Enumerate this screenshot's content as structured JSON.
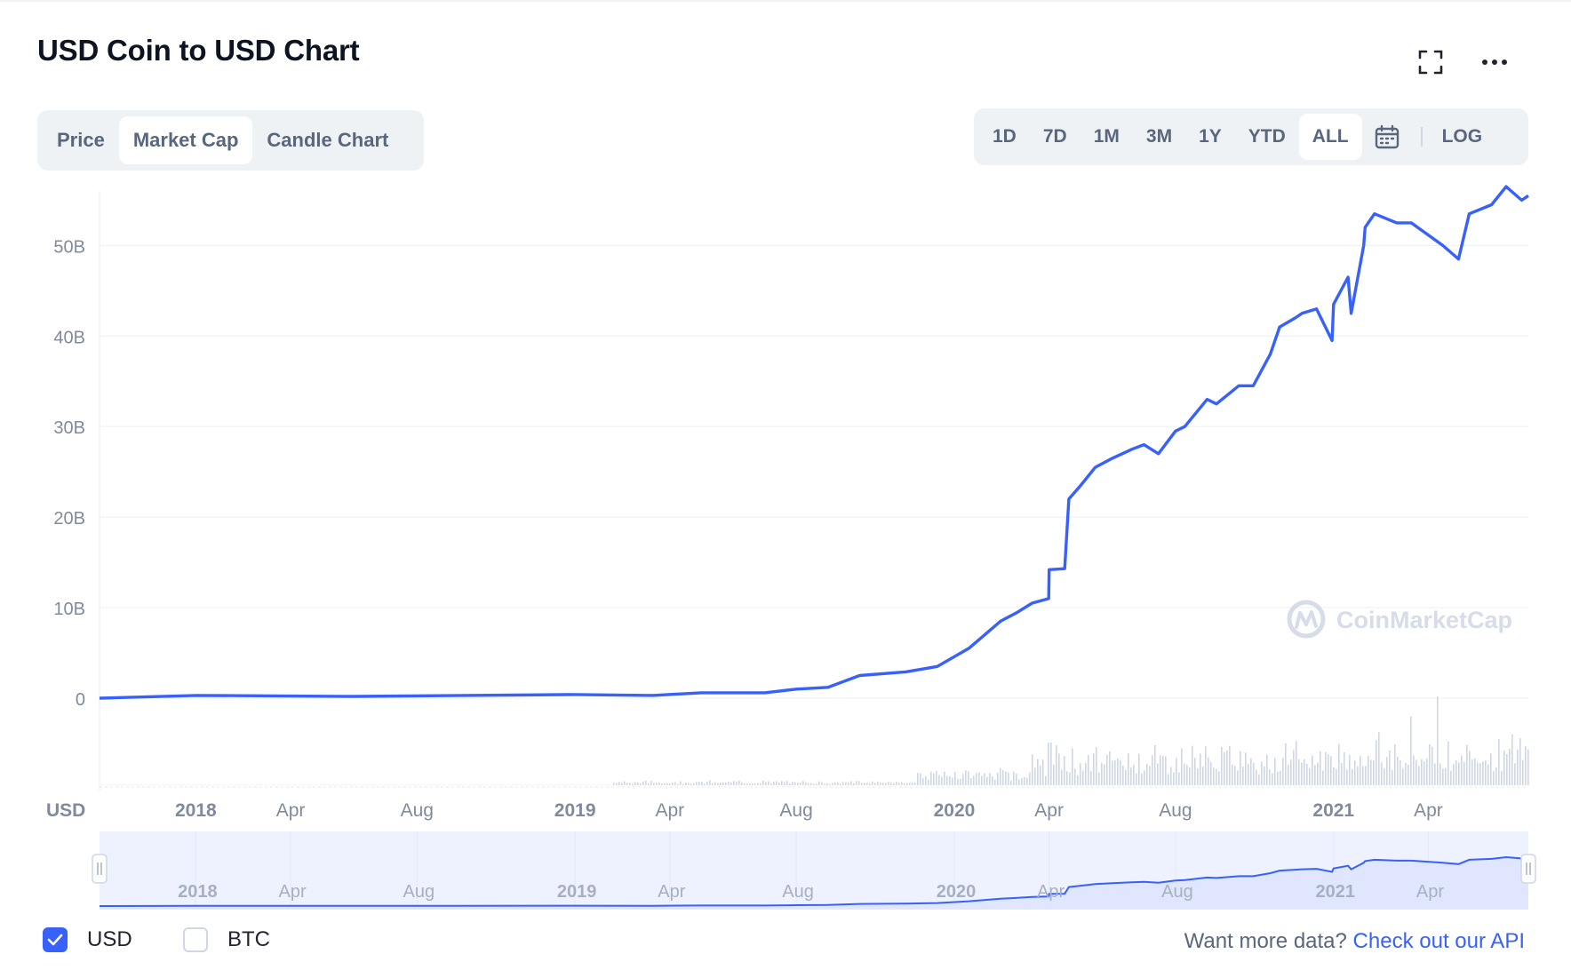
{
  "header": {
    "title": "USD Coin to USD Chart"
  },
  "tabs": [
    {
      "label": "Price",
      "active": false
    },
    {
      "label": "Market Cap",
      "active": true
    },
    {
      "label": "Candle Chart",
      "active": false
    }
  ],
  "ranges": [
    {
      "label": "1D",
      "active": false
    },
    {
      "label": "7D",
      "active": false
    },
    {
      "label": "1M",
      "active": false
    },
    {
      "label": "3M",
      "active": false
    },
    {
      "label": "1Y",
      "active": false
    },
    {
      "label": "YTD",
      "active": false
    },
    {
      "label": "ALL",
      "active": true
    }
  ],
  "log_label": "LOG",
  "icons": {
    "expand": "expand-icon",
    "more": "more-icon",
    "calendar": "calendar-icon"
  },
  "colors": {
    "line": "#3861fb",
    "volume": "#cfd6e4",
    "navigator_fill": "#dfe6fd",
    "navigator_bg": "#eef2fe"
  },
  "watermark": "CoinMarketCap",
  "legend": [
    {
      "label": "USD",
      "checked": true
    },
    {
      "label": "BTC",
      "checked": false
    }
  ],
  "footer": {
    "prompt": "Want more data?",
    "link": "Check out our API"
  },
  "chart_data": {
    "type": "line",
    "title": "USD Coin to USD Chart",
    "ylabel": "USD",
    "y_ticks": [
      "0",
      "10B",
      "20B",
      "30B",
      "40B",
      "50B"
    ],
    "y_tick_values": [
      0,
      10,
      20,
      30,
      40,
      50
    ],
    "y_unit": "billion USD",
    "ylim": [
      0,
      57
    ],
    "x_ticks": [
      {
        "label": "2018",
        "year": true,
        "t": 2018.0
      },
      {
        "label": "Apr",
        "year": false,
        "t": 2018.25
      },
      {
        "label": "Aug",
        "year": false,
        "t": 2018.5833
      },
      {
        "label": "2019",
        "year": true,
        "t": 2019.0
      },
      {
        "label": "Apr",
        "year": false,
        "t": 2019.25
      },
      {
        "label": "Aug",
        "year": false,
        "t": 2019.5833
      },
      {
        "label": "2020",
        "year": true,
        "t": 2020.0
      },
      {
        "label": "Apr",
        "year": false,
        "t": 2020.25
      },
      {
        "label": "Aug",
        "year": false,
        "t": 2020.5833
      },
      {
        "label": "2021",
        "year": true,
        "t": 2021.0
      },
      {
        "label": "Apr",
        "year": false,
        "t": 2021.25
      }
    ],
    "xlim": [
      "2017-09-30",
      "2021-07-06"
    ],
    "x": [
      "2017-09-30",
      "2018-01-01",
      "2018-06-01",
      "2019-01-01",
      "2019-03-15",
      "2019-05-01",
      "2019-06-01",
      "2019-07-01",
      "2019-08-01",
      "2019-09-01",
      "2019-10-01",
      "2019-11-15",
      "2019-12-15",
      "2020-01-15",
      "2020-02-15",
      "2020-03-01",
      "2020-03-15",
      "2020-03-31",
      "2020-04-01",
      "2020-04-16",
      "2020-04-20",
      "2020-05-01",
      "2020-05-15",
      "2020-06-01",
      "2020-06-20",
      "2020-07-01",
      "2020-07-15",
      "2020-08-01",
      "2020-08-10",
      "2020-09-01",
      "2020-09-10",
      "2020-10-01",
      "2020-10-15",
      "2020-11-01",
      "2020-11-10",
      "2020-11-25",
      "2020-12-01",
      "2020-12-15",
      "2020-12-30",
      "2021-01-01",
      "2021-01-15",
      "2021-01-18",
      "2021-01-30",
      "2021-02-01",
      "2021-02-10",
      "2021-03-01",
      "2021-03-15",
      "2021-04-15",
      "2021-04-30",
      "2021-05-10",
      "2021-06-01",
      "2021-06-15",
      "2021-06-30",
      "2021-07-06"
    ],
    "series": [
      {
        "values": [
          0.0,
          0.3,
          0.2,
          0.4,
          0.3,
          0.6,
          0.6,
          0.6,
          1.0,
          1.2,
          2.5,
          2.9,
          3.5,
          5.5,
          8.5,
          9.5,
          10.5,
          11.0,
          14.2,
          14.3,
          22.0,
          23.5,
          25.5,
          26.5,
          27.5,
          28.0,
          27.0,
          29.5,
          30.0,
          33.0,
          32.5,
          34.5,
          34.5,
          38.0,
          41.0,
          42.0,
          42.5,
          43.0,
          39.5,
          43.5,
          46.5,
          42.5,
          50.0,
          52.0,
          53.5,
          52.5,
          52.5,
          50.0,
          48.5,
          53.5,
          54.5,
          56.5,
          55.0,
          55.5
        ]
      }
    ],
    "volume": {
      "note": "Trading volume bars below the price line, unlabeled scale"
    },
    "grid": true,
    "legend": "bottom-left"
  }
}
